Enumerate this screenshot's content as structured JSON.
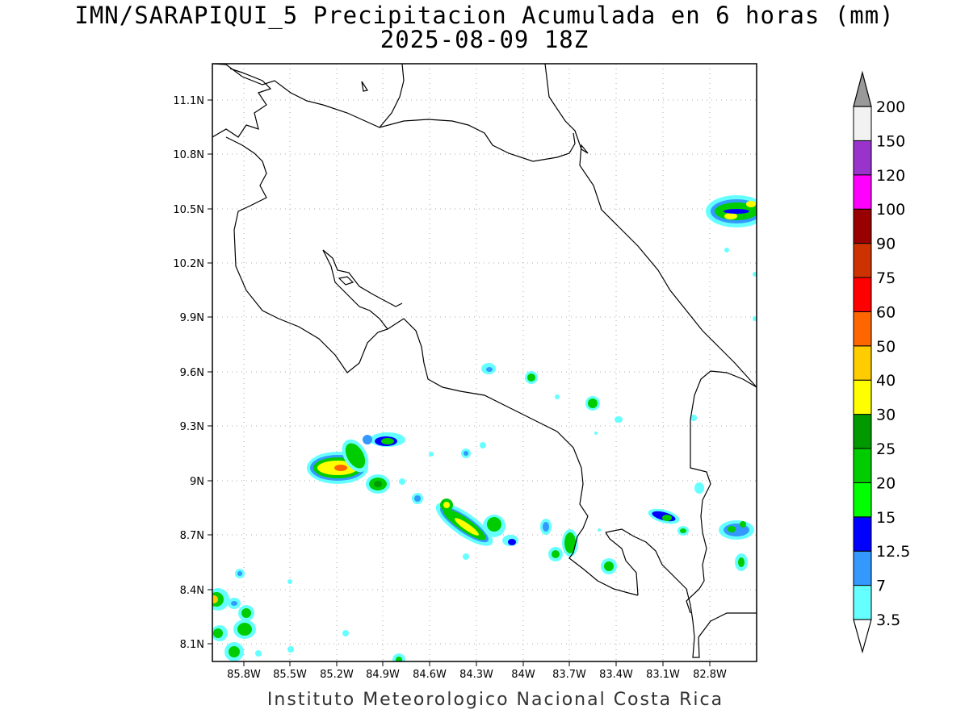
{
  "title": {
    "line1": "IMN/SARAPIQUI_5 Precipitacion Acumulada en 6 horas (mm)",
    "line2": "2025-08-09 18Z"
  },
  "footer": "Instituto Meteorologico Nacional Costa Rica",
  "axes": {
    "lat_ticks": [
      "11.1N",
      "10.8N",
      "10.5N",
      "10.2N",
      "9.9N",
      "9.6N",
      "9.3N",
      "9N",
      "8.7N",
      "8.4N",
      "8.1N"
    ],
    "lon_ticks": [
      "85.8W",
      "85.5W",
      "85.2W",
      "84.9W",
      "84.6W",
      "84.3W",
      "84W",
      "83.7W",
      "83.4W",
      "83.1W",
      "82.8W"
    ]
  },
  "colorbar": {
    "levels": [
      "3.5",
      "7",
      "12.5",
      "15",
      "20",
      "25",
      "30",
      "40",
      "50",
      "60",
      "75",
      "90",
      "100",
      "120",
      "150",
      "200"
    ],
    "colors": [
      "#66ffff",
      "#3399ff",
      "#0000ff",
      "#00ff00",
      "#00cc00",
      "#009900",
      "#ffff00",
      "#ffcc00",
      "#ff6600",
      "#ff0000",
      "#cc3300",
      "#990000",
      "#ff00ff",
      "#9933cc",
      "#f2f2f2",
      "#999999"
    ]
  }
}
